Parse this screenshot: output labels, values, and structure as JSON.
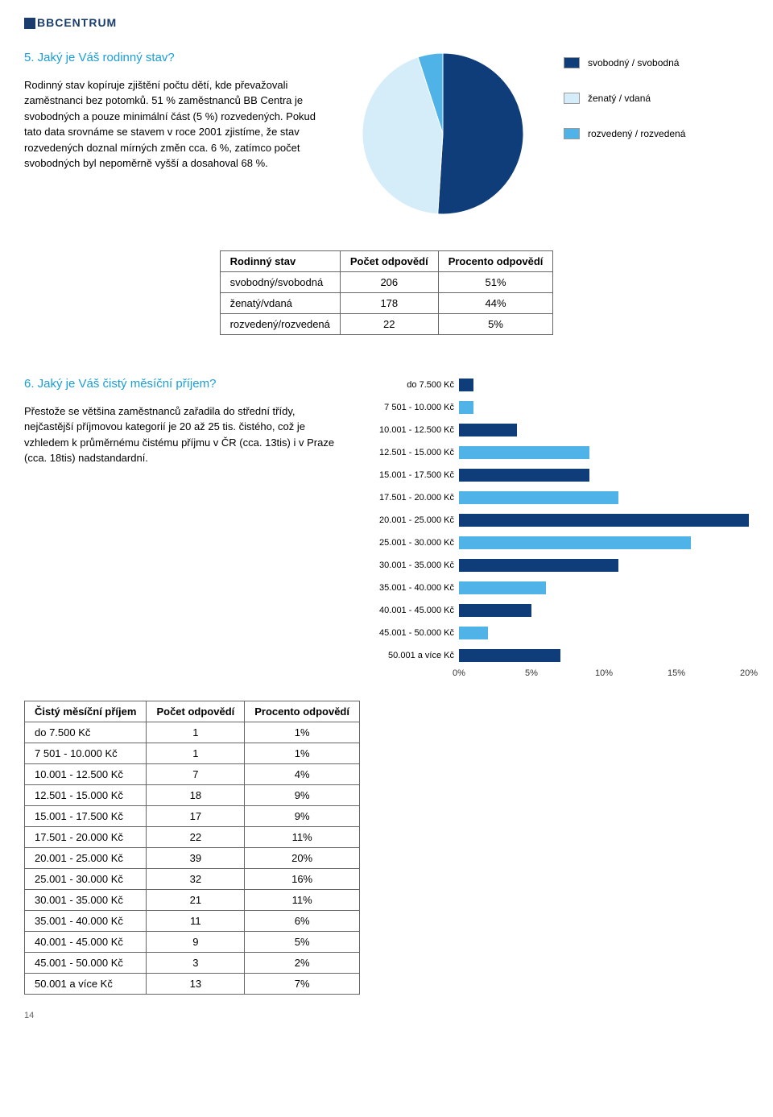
{
  "logo_text": "BBCENTRUM",
  "section5": {
    "title": "5. Jaký je Váš rodinný stav?",
    "body": "Rodinný stav kopíruje zjištění počtu dětí, kde převažovali zaměstnanci bez potomků. 51 % zaměstnanců BB Centra je svobodných a pouze minimální část (5 %) rozvedených. Pokud tato data srovnáme se stavem v roce 2001 zjistíme, že stav rozvedených doznal mírných změn cca. 6 %, zatímco počet svobodných byl nepoměrně vyšší a dosahoval 68 %."
  },
  "pie": {
    "slices": [
      {
        "label": "svobodný / svobodná",
        "pct": 51,
        "color": "#0e3d7a"
      },
      {
        "label": "ženatý / vdaná",
        "pct": 44,
        "color": "#d5ecf9"
      },
      {
        "label": "rozvedený / rozvedená",
        "pct": 5,
        "color": "#4fb3e8"
      }
    ]
  },
  "table1": {
    "headers": [
      "Rodinný stav",
      "Počet odpovědí",
      "Procento odpovědí"
    ],
    "rows": [
      [
        "svobodný/svobodná",
        "206",
        "51%"
      ],
      [
        "ženatý/vdaná",
        "178",
        "44%"
      ],
      [
        "rozvedený/rozvedená",
        "22",
        "5%"
      ]
    ]
  },
  "section6": {
    "title": "6. Jaký je Váš čistý měsíční příjem?",
    "body": "Přestože se většina zaměstnanců zařadila do střední třídy, nejčastější příjmovou kategorií je 20 až 25 tis. čistého, což je vzhledem k průměrnému čistému příjmu v ČR (cca. 13tis) i v Praze (cca. 18tis) nadstandardní."
  },
  "bar_chart": {
    "xmax": 20,
    "ticks": [
      0,
      5,
      10,
      15,
      20
    ],
    "tick_labels": [
      "0%",
      "5%",
      "10%",
      "15%",
      "20%"
    ],
    "colors": {
      "a": "#0e3d7a",
      "b": "#4fb3e8"
    },
    "rows": [
      {
        "label": "do 7.500 Kč",
        "pct": 1,
        "color": "#0e3d7a"
      },
      {
        "label": "7 501 - 10.000 Kč",
        "pct": 1,
        "color": "#4fb3e8"
      },
      {
        "label": "10.001 - 12.500 Kč",
        "pct": 4,
        "color": "#0e3d7a"
      },
      {
        "label": "12.501 - 15.000 Kč",
        "pct": 9,
        "color": "#4fb3e8"
      },
      {
        "label": "15.001 - 17.500 Kč",
        "pct": 9,
        "color": "#0e3d7a"
      },
      {
        "label": "17.501 - 20.000 Kč",
        "pct": 11,
        "color": "#4fb3e8"
      },
      {
        "label": "20.001 - 25.000 Kč",
        "pct": 20,
        "color": "#0e3d7a"
      },
      {
        "label": "25.001 - 30.000 Kč",
        "pct": 16,
        "color": "#4fb3e8"
      },
      {
        "label": "30.001 - 35.000 Kč",
        "pct": 11,
        "color": "#0e3d7a"
      },
      {
        "label": "35.001 - 40.000 Kč",
        "pct": 6,
        "color": "#4fb3e8"
      },
      {
        "label": "40.001 - 45.000 Kč",
        "pct": 5,
        "color": "#0e3d7a"
      },
      {
        "label": "45.001 - 50.000 Kč",
        "pct": 2,
        "color": "#4fb3e8"
      },
      {
        "label": "50.001 a více Kč",
        "pct": 7,
        "color": "#0e3d7a"
      }
    ]
  },
  "table2": {
    "headers": [
      "Čistý měsíční příjem",
      "Počet odpovědí",
      "Procento odpovědí"
    ],
    "rows": [
      [
        "do 7.500 Kč",
        "1",
        "1%"
      ],
      [
        "7 501 - 10.000 Kč",
        "1",
        "1%"
      ],
      [
        "10.001 - 12.500 Kč",
        "7",
        "4%"
      ],
      [
        "12.501 - 15.000 Kč",
        "18",
        "9%"
      ],
      [
        "15.001 - 17.500 Kč",
        "17",
        "9%"
      ],
      [
        "17.501 - 20.000 Kč",
        "22",
        "11%"
      ],
      [
        "20.001 - 25.000 Kč",
        "39",
        "20%"
      ],
      [
        "25.001 - 30.000 Kč",
        "32",
        "16%"
      ],
      [
        "30.001 - 35.000 Kč",
        "21",
        "11%"
      ],
      [
        "35.001 - 40.000 Kč",
        "11",
        "6%"
      ],
      [
        "40.001 - 45.000 Kč",
        "9",
        "5%"
      ],
      [
        "45.001 - 50.000 Kč",
        "3",
        "2%"
      ],
      [
        "50.001 a více Kč",
        "13",
        "7%"
      ]
    ]
  },
  "page_number": "14"
}
